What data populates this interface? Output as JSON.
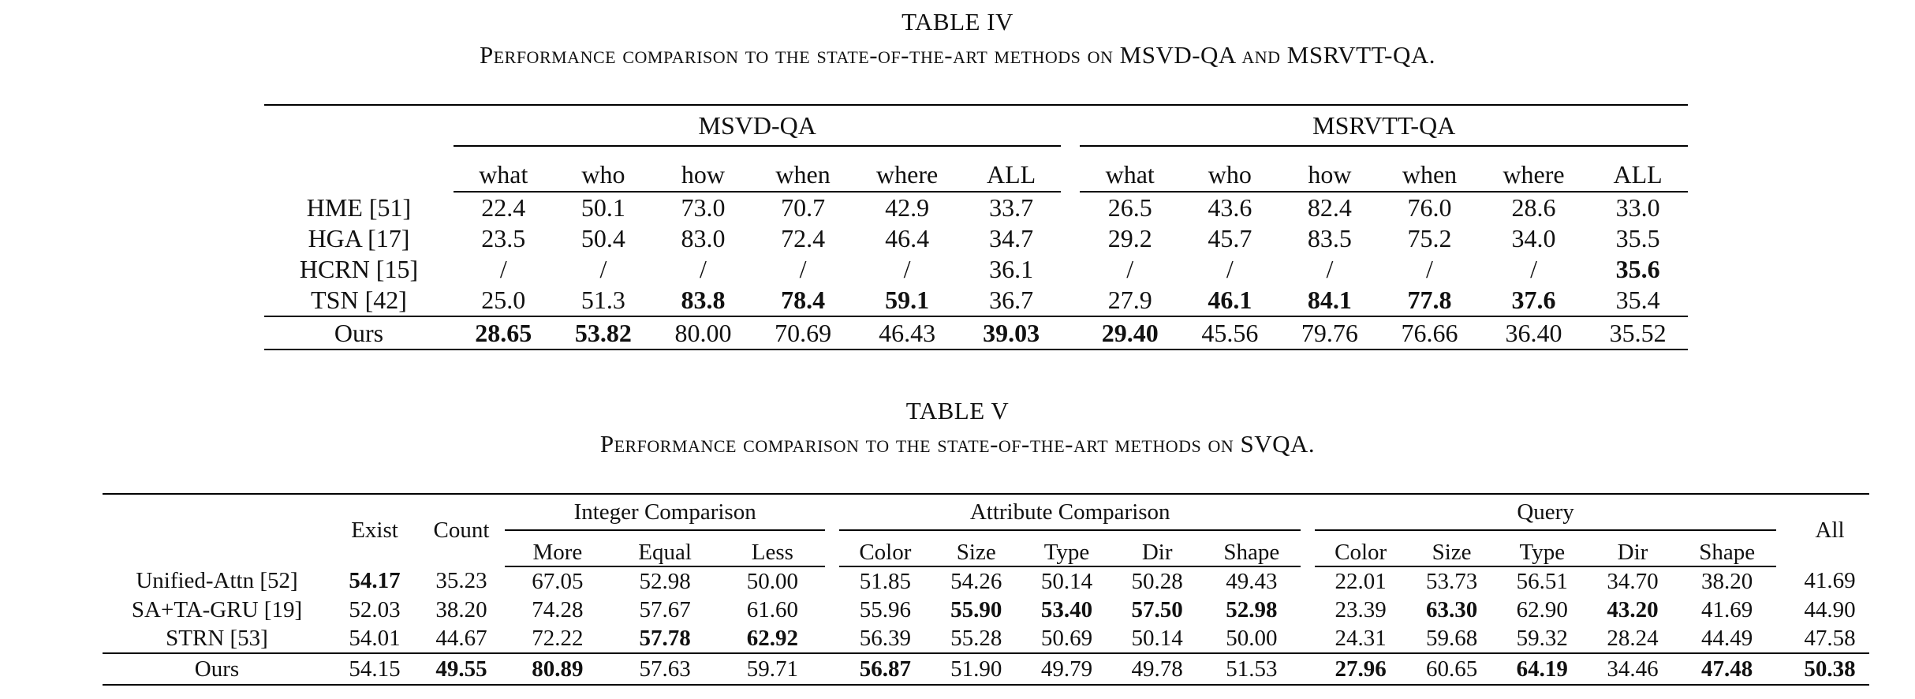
{
  "table4": {
    "title": "TABLE IV",
    "caption": "Performance comparison to the state-of-the-art methods on MSVD-QA and MSRVTT-QA.",
    "groups": [
      "MSVD-QA",
      "MSRVTT-QA"
    ],
    "columns": [
      "what",
      "who",
      "how",
      "when",
      "where",
      "ALL"
    ],
    "rows": [
      {
        "method": "HME [51]",
        "values": [
          "22.4",
          "50.1",
          "73.0",
          "70.7",
          "42.9",
          "33.7",
          "26.5",
          "43.6",
          "82.4",
          "76.0",
          "28.6",
          "33.0"
        ],
        "bold": []
      },
      {
        "method": "HGA [17]",
        "values": [
          "23.5",
          "50.4",
          "83.0",
          "72.4",
          "46.4",
          "34.7",
          "29.2",
          "45.7",
          "83.5",
          "75.2",
          "34.0",
          "35.5"
        ],
        "bold": []
      },
      {
        "method": "HCRN [15]",
        "values": [
          "/",
          "/",
          "/",
          "/",
          "/",
          "36.1",
          "/",
          "/",
          "/",
          "/",
          "/",
          "35.6"
        ],
        "bold": [
          11
        ]
      },
      {
        "method": "TSN [42]",
        "values": [
          "25.0",
          "51.3",
          "83.8",
          "78.4",
          "59.1",
          "36.7",
          "27.9",
          "46.1",
          "84.1",
          "77.8",
          "37.6",
          "35.4"
        ],
        "bold": [
          2,
          3,
          4,
          7,
          8,
          9,
          10
        ]
      },
      {
        "method": "Ours",
        "values": [
          "28.65",
          "53.82",
          "80.00",
          "70.69",
          "46.43",
          "39.03",
          "29.40",
          "45.56",
          "79.76",
          "76.66",
          "36.40",
          "35.52"
        ],
        "bold": [
          0,
          1,
          5,
          6
        ]
      }
    ]
  },
  "table5": {
    "title": "TABLE V",
    "caption": "Performance comparison to the state-of-the-art methods on SVQA.",
    "single_columns": {
      "exist": "Exist",
      "count": "Count",
      "all": "All"
    },
    "groups": [
      {
        "label": "Integer Comparison",
        "columns": [
          "More",
          "Equal",
          "Less"
        ]
      },
      {
        "label": "Attribute Comparison",
        "columns": [
          "Color",
          "Size",
          "Type",
          "Dir",
          "Shape"
        ]
      },
      {
        "label": "Query",
        "columns": [
          "Color",
          "Size",
          "Type",
          "Dir",
          "Shape"
        ]
      }
    ],
    "rows": [
      {
        "method": "Unified-Attn [52]",
        "values": [
          "54.17",
          "35.23",
          "67.05",
          "52.98",
          "50.00",
          "51.85",
          "54.26",
          "50.14",
          "50.28",
          "49.43",
          "22.01",
          "53.73",
          "56.51",
          "34.70",
          "38.20",
          "41.69"
        ],
        "bold": [
          0
        ]
      },
      {
        "method": "SA+TA-GRU [19]",
        "values": [
          "52.03",
          "38.20",
          "74.28",
          "57.67",
          "61.60",
          "55.96",
          "55.90",
          "53.40",
          "57.50",
          "52.98",
          "23.39",
          "63.30",
          "62.90",
          "43.20",
          "41.69",
          "44.90"
        ],
        "bold": [
          6,
          7,
          8,
          9,
          11,
          13
        ]
      },
      {
        "method": "STRN [53]",
        "values": [
          "54.01",
          "44.67",
          "72.22",
          "57.78",
          "62.92",
          "56.39",
          "55.28",
          "50.69",
          "50.14",
          "50.00",
          "24.31",
          "59.68",
          "59.32",
          "28.24",
          "44.49",
          "47.58"
        ],
        "bold": [
          3,
          4
        ]
      },
      {
        "method": "Ours",
        "values": [
          "54.15",
          "49.55",
          "80.89",
          "57.63",
          "59.71",
          "56.87",
          "51.90",
          "49.79",
          "49.78",
          "51.53",
          "27.96",
          "60.65",
          "64.19",
          "34.46",
          "47.48",
          "50.38"
        ],
        "bold": [
          1,
          2,
          5,
          10,
          12,
          14,
          15
        ]
      }
    ]
  }
}
